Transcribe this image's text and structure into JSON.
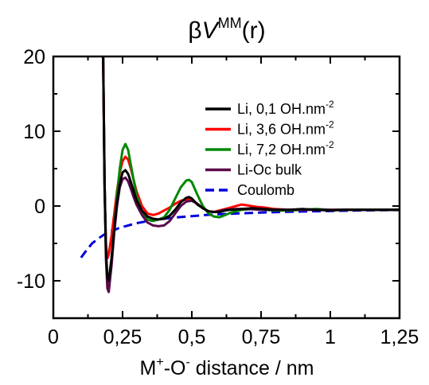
{
  "chart_data": {
    "type": "line",
    "title": {
      "prefix": "β",
      "var": "V",
      "sup": "MM",
      "arg": "(r)"
    },
    "xlabel": {
      "m": "M",
      "m_sup": "+",
      "sep": "-O",
      "o_sup": "-",
      "rest": " distance  / nm"
    },
    "ylabel": "",
    "xlim": [
      0,
      1.25
    ],
    "ylim": [
      -15,
      20
    ],
    "x_ticks": [
      0,
      0.25,
      0.5,
      0.75,
      1,
      1.25
    ],
    "x_tick_labels": [
      "0",
      "0,25",
      "0,5",
      "0,75",
      "1",
      "1,25"
    ],
    "y_ticks": [
      -10,
      0,
      10,
      20
    ],
    "y_tick_labels": [
      "-10",
      "0",
      "10",
      "20"
    ],
    "grid": false,
    "legend_position": "top-right",
    "series": [
      {
        "name": "Li, 0,1 OH.nm",
        "name_sup": "-2",
        "color": "#000000",
        "dash": "solid",
        "x": [
          0.18,
          0.185,
          0.19,
          0.195,
          0.2,
          0.21,
          0.22,
          0.23,
          0.24,
          0.25,
          0.26,
          0.27,
          0.28,
          0.29,
          0.3,
          0.32,
          0.34,
          0.36,
          0.38,
          0.4,
          0.42,
          0.44,
          0.46,
          0.48,
          0.49,
          0.5,
          0.52,
          0.54,
          0.56,
          0.58,
          0.6,
          0.62,
          0.64,
          0.68,
          0.72,
          0.76,
          0.8,
          0.85,
          0.9,
          0.95,
          1.0,
          1.05,
          1.1,
          1.15,
          1.2,
          1.25
        ],
        "y": [
          20,
          3,
          -6,
          -9.5,
          -10,
          -7,
          -3,
          0.5,
          3,
          4.5,
          4.8,
          4.3,
          3.2,
          2,
          0.8,
          -0.6,
          -1.4,
          -1.7,
          -1.8,
          -1.7,
          -1.3,
          -0.5,
          0.5,
          1.1,
          1.2,
          1.0,
          0.2,
          -0.3,
          -0.7,
          -0.8,
          -0.8,
          -0.6,
          -0.5,
          -0.4,
          -0.3,
          -0.4,
          -0.5,
          -0.5,
          -0.4,
          -0.5,
          -0.6,
          -0.5,
          -0.5,
          -0.5,
          -0.5,
          -0.5
        ]
      },
      {
        "name": "Li, 3,6 OH.nm",
        "name_sup": "-2",
        "color": "#ff0000",
        "dash": "solid",
        "x": [
          0.18,
          0.185,
          0.19,
          0.195,
          0.2,
          0.21,
          0.22,
          0.23,
          0.24,
          0.25,
          0.26,
          0.27,
          0.28,
          0.29,
          0.3,
          0.32,
          0.34,
          0.36,
          0.38,
          0.4,
          0.42,
          0.44,
          0.46,
          0.48,
          0.5,
          0.52,
          0.54,
          0.56,
          0.58,
          0.6,
          0.62,
          0.64,
          0.66,
          0.68,
          0.7,
          0.73,
          0.76,
          0.8,
          0.85,
          0.9,
          0.95,
          1.0,
          1.05,
          1.1,
          1.15,
          1.2,
          1.25
        ],
        "y": [
          20,
          2,
          -5,
          -7,
          -6.5,
          -4,
          -1,
          2,
          4.5,
          6,
          6.6,
          6.2,
          5,
          3.5,
          2,
          0,
          -1,
          -1.2,
          -1.0,
          -0.6,
          -0.2,
          0.3,
          0.7,
          0.9,
          0.8,
          0.3,
          -0.3,
          -0.7,
          -0.8,
          -0.6,
          -0.4,
          -0.2,
          0,
          0.2,
          0.1,
          -0.1,
          -0.2,
          -0.4,
          -0.5,
          -0.5,
          -0.5,
          -0.5,
          -0.5,
          -0.5,
          -0.5,
          -0.5,
          -0.5
        ]
      },
      {
        "name": "Li, 7,2 OH.nm",
        "name_sup": "-2",
        "color": "#008800",
        "dash": "solid",
        "x": [
          0.18,
          0.185,
          0.19,
          0.195,
          0.2,
          0.21,
          0.22,
          0.23,
          0.24,
          0.25,
          0.26,
          0.27,
          0.28,
          0.29,
          0.3,
          0.32,
          0.34,
          0.36,
          0.38,
          0.4,
          0.42,
          0.44,
          0.46,
          0.48,
          0.49,
          0.5,
          0.52,
          0.54,
          0.56,
          0.58,
          0.6,
          0.62,
          0.64,
          0.68,
          0.72,
          0.76,
          0.8,
          0.85,
          0.9,
          0.95,
          1.0,
          1.05,
          1.1,
          1.15,
          1.2,
          1.25
        ],
        "y": [
          20,
          3,
          -6,
          -10.5,
          -11,
          -7.5,
          -3,
          1.5,
          5,
          7.5,
          8.3,
          7.5,
          5.5,
          3.5,
          1.5,
          -0.8,
          -1.8,
          -2.0,
          -1.8,
          -1.5,
          -0.5,
          1,
          2.5,
          3.4,
          3.5,
          3.2,
          1.5,
          0,
          -1.0,
          -1.4,
          -1.5,
          -1.2,
          -0.9,
          -0.5,
          -0.4,
          -0.5,
          -0.6,
          -0.6,
          -0.5,
          -0.4,
          -0.5,
          -0.5,
          -0.5,
          -0.5,
          -0.5,
          -0.5
        ]
      },
      {
        "name": "Li-Oc bulk",
        "name_sup": "",
        "color": "#5a0a4a",
        "dash": "solid",
        "x": [
          0.18,
          0.185,
          0.19,
          0.195,
          0.2,
          0.21,
          0.22,
          0.23,
          0.24,
          0.25,
          0.26,
          0.27,
          0.28,
          0.29,
          0.3,
          0.32,
          0.34,
          0.36,
          0.38,
          0.4,
          0.42,
          0.44,
          0.46,
          0.48,
          0.5,
          0.52,
          0.54,
          0.56,
          0.58,
          0.6,
          0.62,
          0.66,
          0.7,
          0.75,
          0.8,
          0.85,
          0.9,
          0.95,
          1.0,
          1.05,
          1.1,
          1.15,
          1.2,
          1.25
        ],
        "y": [
          20,
          3,
          -7,
          -11,
          -11.5,
          -8,
          -3.5,
          0,
          2.5,
          3.6,
          3.8,
          3.3,
          2.3,
          1.2,
          0.2,
          -1.2,
          -2.2,
          -2.6,
          -2.7,
          -2.6,
          -2.0,
          -1.0,
          0,
          0.6,
          0.7,
          0.3,
          -0.3,
          -0.7,
          -0.8,
          -0.7,
          -0.5,
          -0.4,
          -0.4,
          -0.5,
          -0.5,
          -0.5,
          -0.5,
          -0.5,
          -0.5,
          -0.5,
          -0.5,
          -0.5,
          -0.5,
          -0.5
        ]
      },
      {
        "name": "Coulomb",
        "name_sup": "",
        "color": "#0000dd",
        "dash": "dashed",
        "x": [
          0.1,
          0.12,
          0.14,
          0.16,
          0.18,
          0.2,
          0.22,
          0.24,
          0.26,
          0.28,
          0.3,
          0.33,
          0.36,
          0.4,
          0.45,
          0.5,
          0.55,
          0.6,
          0.7,
          0.8,
          0.9,
          1.0,
          1.1,
          1.2,
          1.25
        ],
        "y": [
          -6.9,
          -5.9,
          -5.0,
          -4.4,
          -3.9,
          -3.5,
          -3.2,
          -2.9,
          -2.7,
          -2.5,
          -2.3,
          -2.1,
          -1.9,
          -1.7,
          -1.5,
          -1.35,
          -1.2,
          -1.1,
          -0.95,
          -0.82,
          -0.73,
          -0.66,
          -0.6,
          -0.55,
          -0.53
        ]
      }
    ]
  }
}
